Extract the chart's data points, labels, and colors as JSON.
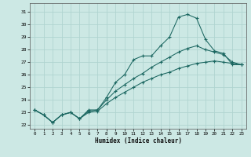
{
  "xlabel": "Humidex (Indice chaleur)",
  "ylabel": "",
  "xlim": [
    -0.5,
    23.5
  ],
  "ylim": [
    21.7,
    31.7
  ],
  "yticks": [
    22,
    23,
    24,
    25,
    26,
    27,
    28,
    29,
    30,
    31
  ],
  "xticks": [
    0,
    1,
    2,
    3,
    4,
    5,
    6,
    7,
    8,
    9,
    10,
    11,
    12,
    13,
    14,
    15,
    16,
    17,
    18,
    19,
    20,
    21,
    22,
    23
  ],
  "bg_color": "#cce8e4",
  "grid_color": "#b0d4d0",
  "line_color": "#1a6660",
  "line1_y": [
    23.2,
    22.8,
    22.2,
    22.8,
    23.0,
    22.5,
    23.2,
    23.2,
    24.2,
    25.4,
    26.0,
    27.2,
    27.5,
    27.5,
    28.3,
    29.0,
    30.6,
    30.8,
    30.5,
    28.8,
    27.9,
    27.7,
    26.8,
    26.8
  ],
  "line2_y": [
    23.2,
    22.8,
    22.2,
    22.8,
    23.0,
    22.5,
    23.1,
    23.2,
    24.0,
    24.7,
    25.2,
    25.7,
    26.1,
    26.6,
    27.0,
    27.4,
    27.8,
    28.1,
    28.3,
    28.0,
    27.8,
    27.6,
    27.0,
    26.8
  ],
  "line3_y": [
    23.2,
    22.8,
    22.2,
    22.8,
    23.0,
    22.5,
    23.0,
    23.1,
    23.7,
    24.2,
    24.6,
    25.0,
    25.4,
    25.7,
    26.0,
    26.2,
    26.5,
    26.7,
    26.9,
    27.0,
    27.1,
    27.0,
    26.9,
    26.8
  ]
}
